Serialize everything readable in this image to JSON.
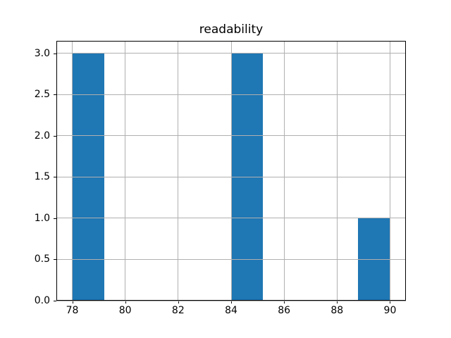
{
  "chart_data": {
    "type": "bar",
    "subtype": "histogram",
    "title": "readability",
    "xlabel": "",
    "ylabel": "",
    "bars": [
      {
        "x0": 78.0,
        "x1": 79.2,
        "value": 3
      },
      {
        "x0": 84.0,
        "x1": 85.2,
        "value": 3
      },
      {
        "x0": 88.8,
        "x1": 90.0,
        "value": 1
      }
    ],
    "xticks": [
      {
        "value": 78,
        "label": "78"
      },
      {
        "value": 80,
        "label": "80"
      },
      {
        "value": 82,
        "label": "82"
      },
      {
        "value": 84,
        "label": "84"
      },
      {
        "value": 86,
        "label": "86"
      },
      {
        "value": 88,
        "label": "88"
      },
      {
        "value": 90,
        "label": "90"
      }
    ],
    "yticks": [
      {
        "value": 0.0,
        "label": "0.0"
      },
      {
        "value": 0.5,
        "label": "0.5"
      },
      {
        "value": 1.0,
        "label": "1.0"
      },
      {
        "value": 1.5,
        "label": "1.5"
      },
      {
        "value": 2.0,
        "label": "2.0"
      },
      {
        "value": 2.5,
        "label": "2.5"
      },
      {
        "value": 3.0,
        "label": "3.0"
      }
    ],
    "xlim": [
      77.4,
      90.6
    ],
    "ylim": [
      0,
      3.15
    ],
    "grid": true,
    "grid_over_bars": true,
    "legend": "none",
    "colors": {
      "bar": "#1f77b4",
      "grid": "#b0b0b0",
      "spine": "#000000",
      "text": "#000000",
      "background": "#ffffff"
    }
  }
}
